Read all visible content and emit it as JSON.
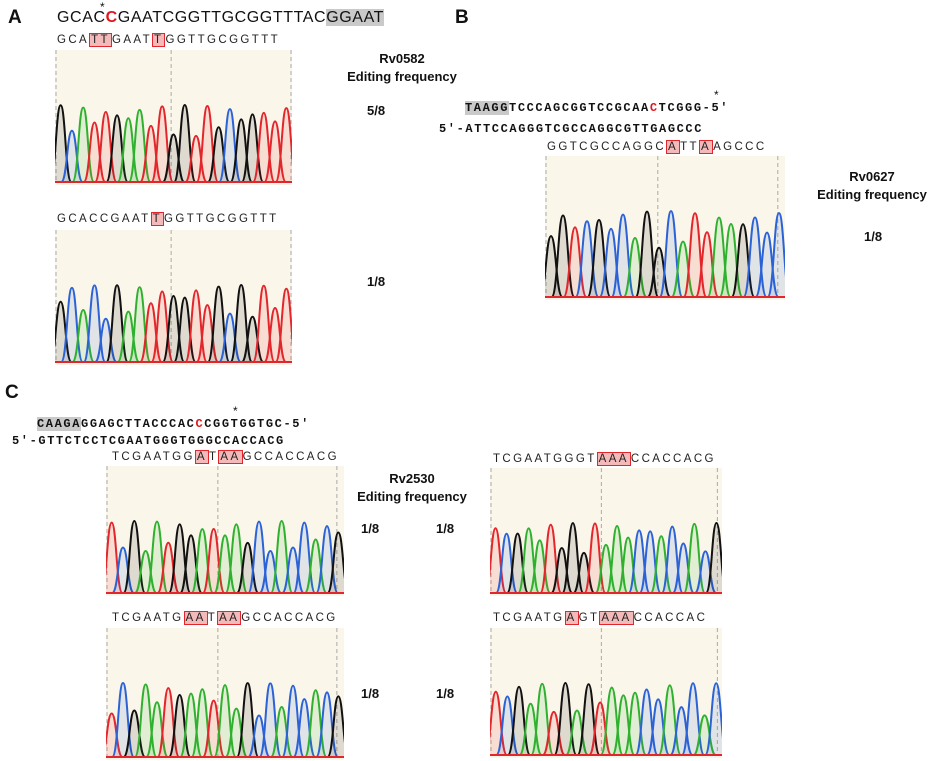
{
  "panel_a": {
    "letter": "A",
    "target_parts": [
      "GCAC",
      "C",
      "GAATCGGTTGCGGTTTAC",
      "GGAAT"
    ],
    "star": "*",
    "gene": "Rv0582",
    "freq_label": "Editing frequency",
    "reads": [
      {
        "parts": [
          "GCA",
          "TT",
          "GAAT",
          "T",
          "GGTTGCGGTTT"
        ],
        "boxed": [
          1,
          3
        ],
        "freq": "5/8"
      },
      {
        "parts": [
          "GCACCGAAT",
          "T",
          "GGTTGCGGTTT"
        ],
        "boxed": [
          1
        ],
        "freq": "1/8"
      }
    ]
  },
  "panel_b": {
    "letter": "B",
    "top_parts": [
      "TAAGG",
      "TCCCAGCGGTCCGCAA",
      "C",
      "TCGGG-5'"
    ],
    "bottom": "5'-ATTCCAGGGTCGCCAGGCGTTGAGCCC",
    "star": "*",
    "gene": "Rv0627",
    "freq_label": "Editing frequency",
    "reads": [
      {
        "parts": [
          "GGTCGCCAGGC",
          "A",
          "TT",
          "A",
          "AGCCC"
        ],
        "boxed": [
          1,
          3
        ],
        "freq": "1/8"
      }
    ]
  },
  "panel_c": {
    "letter": "C",
    "top_parts": [
      "CAAGA",
      "GGAGCTTACCCAC",
      "C",
      "CGGTGGTGC-5'"
    ],
    "bottom": "5'-GTTCTCCTCGAATGGGTGGGCCACCACG",
    "star": "*",
    "gene": "Rv2530",
    "freq_label": "Editing frequency",
    "reads": [
      {
        "parts": [
          "TCGAATGG",
          "A",
          "T",
          "AA",
          "GCCACCACG"
        ],
        "boxed": [
          1,
          3
        ],
        "freq": "1/8"
      },
      {
        "parts": [
          "TCGAATGGGT",
          "AAA",
          "CCACCACG"
        ],
        "boxed": [
          1
        ],
        "freq": "1/8"
      },
      {
        "parts": [
          "TCGAATG",
          "AA",
          "T",
          "AA",
          "GCCACCACG"
        ],
        "boxed": [
          1,
          3
        ],
        "freq": "1/8"
      },
      {
        "parts": [
          "TCGAATG",
          "A",
          "GT",
          "AAA",
          "CCACCAC"
        ],
        "boxed": [
          1,
          3
        ],
        "freq": "1/8"
      }
    ]
  },
  "colors": {
    "A": "#2fb12f",
    "C": "#2b62d6",
    "G": "#111111",
    "T": "#e3262c",
    "edit": "#e0141c",
    "pam": "#c9c9c9",
    "chrom_bg": "#fbf6ea",
    "box_fill": "#f4b9b9"
  }
}
